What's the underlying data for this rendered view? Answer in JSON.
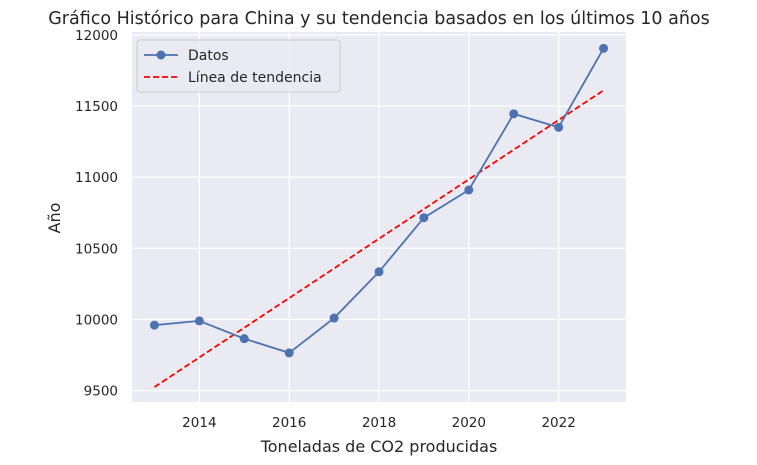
{
  "chart_data": {
    "type": "line",
    "title": "Gráfico Histórico para China y su tendencia basados en los últimos 10 años",
    "xlabel": "Toneladas de CO2 producidas",
    "ylabel": "Año",
    "xlim": [
      2012.5,
      2023.5
    ],
    "ylim": [
      9420,
      12020
    ],
    "x_ticks": [
      2014,
      2016,
      2018,
      2020,
      2022
    ],
    "y_ticks": [
      9500,
      10000,
      10500,
      11000,
      11500,
      12000
    ],
    "grid": true,
    "legend_position": "top-left",
    "series": [
      {
        "name": "Datos",
        "style": "solid-marker",
        "color": "#4c72b0",
        "x": [
          2013,
          2014,
          2015,
          2016,
          2017,
          2018,
          2019,
          2020,
          2021,
          2022,
          2023
        ],
        "y": [
          9960,
          9990,
          9865,
          9765,
          10010,
          10335,
          10715,
          10910,
          11445,
          11350,
          11905
        ]
      },
      {
        "name": "Línea de tendencia",
        "style": "dashed",
        "color": "#ff0000",
        "x": [
          2013,
          2023
        ],
        "y": [
          9525,
          11610
        ]
      }
    ]
  }
}
